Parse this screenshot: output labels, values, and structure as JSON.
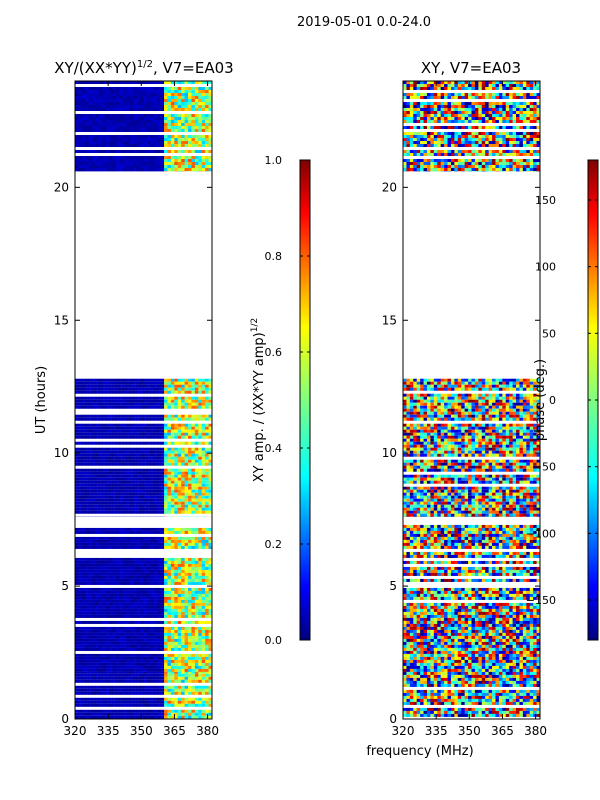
{
  "figure": {
    "suptitle": "2019-05-01 0.0-24.0",
    "xlabel": "frequency (MHz)",
    "colors": {
      "jet": [
        "#00007f",
        "#0000ff",
        "#007fff",
        "#00ffff",
        "#7fff7f",
        "#ffff00",
        "#ff7f00",
        "#ff0000",
        "#7f0000"
      ],
      "background": "#ffffff"
    }
  },
  "chart_data": [
    {
      "type": "heatmap",
      "title_main": "XY/(XX*YY)",
      "title_sup": "1/2",
      "title_rest": ", V7=EA03",
      "xlabel": "frequency (MHz)",
      "ylabel": "UT (hours)",
      "x_ticks": [
        "320",
        "335",
        "350",
        "365",
        "380"
      ],
      "x_tick_values": [
        320,
        335,
        350,
        365,
        380
      ],
      "xlim": [
        320,
        382
      ],
      "y_ticks": [
        "0",
        "5",
        "10",
        "15",
        "20"
      ],
      "y_tick_values": [
        0,
        5,
        10,
        15,
        20
      ],
      "ylim": [
        0,
        24
      ],
      "colorbar": {
        "label_main": "XY amp. / (XX*YY amp)",
        "label_sup": "1/2",
        "ticks": [
          "0.0",
          "0.2",
          "0.4",
          "0.6",
          "0.8",
          "1.0"
        ],
        "tick_values": [
          0,
          0.2,
          0.4,
          0.6,
          0.8,
          1.0
        ],
        "range": [
          0,
          1
        ]
      },
      "data_ranges_ut": [
        [
          0,
          1.7
        ],
        [
          1.7,
          7.3
        ],
        [
          7.6,
          12.8
        ],
        [
          20.6,
          24
        ]
      ],
      "gap_ranges_ut": [
        [
          12.8,
          20.6
        ]
      ],
      "rfi_channels_mhz": [
        360,
        383
      ],
      "value_description_low": 0.05,
      "value_description_high": 0.55
    },
    {
      "type": "heatmap",
      "title_main": "XY, V7=EA03",
      "xlabel": "frequency (MHz)",
      "ylabel": "",
      "x_ticks": [
        "320",
        "335",
        "350",
        "365",
        "380"
      ],
      "x_tick_values": [
        320,
        335,
        350,
        365,
        380
      ],
      "xlim": [
        320,
        382
      ],
      "y_ticks": [
        "0",
        "5",
        "10",
        "15",
        "20"
      ],
      "y_tick_values": [
        0,
        5,
        10,
        15,
        20
      ],
      "ylim": [
        0,
        24
      ],
      "colorbar": {
        "label_main": "phase (deg.)",
        "ticks": [
          "−150",
          "−100",
          "−50",
          "0",
          "50",
          "100",
          "150"
        ],
        "tick_values": [
          -150,
          -100,
          -50,
          0,
          50,
          100,
          150
        ],
        "range": [
          -180,
          180
        ]
      },
      "data_ranges_ut": [
        [
          0,
          7.3
        ],
        [
          7.6,
          12.8
        ],
        [
          20.6,
          24
        ]
      ],
      "gap_ranges_ut": [
        [
          12.8,
          20.6
        ]
      ]
    }
  ]
}
